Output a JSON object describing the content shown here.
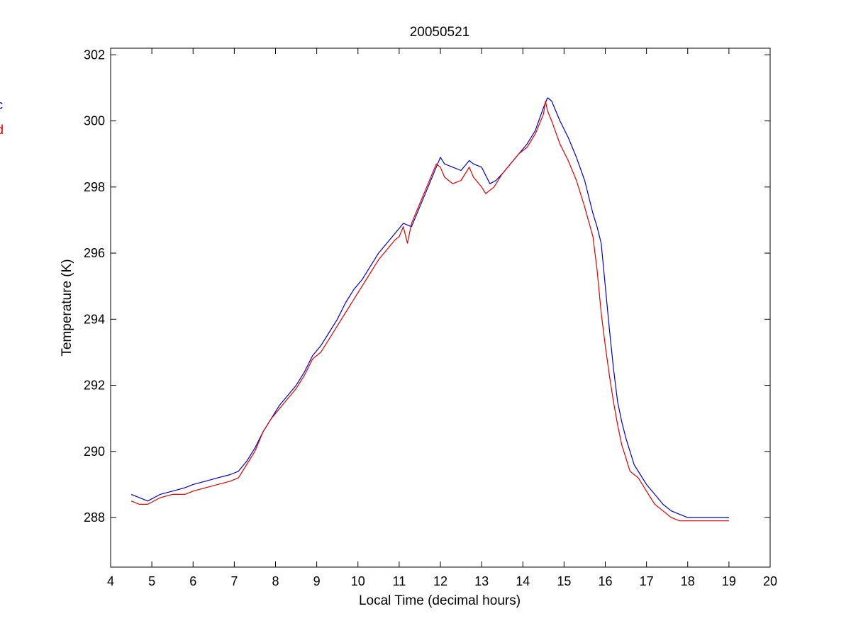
{
  "chart_data": {
    "type": "line",
    "title": "20050521",
    "xlabel": "Local Time (decimal hours)",
    "ylabel": "Temperature (K)",
    "xlim": [
      4,
      20
    ],
    "ylim": [
      286.5,
      302.2
    ],
    "xticks": [
      "4",
      "5",
      "6",
      "7",
      "8",
      "9",
      "10",
      "11",
      "12",
      "13",
      "14",
      "15",
      "16",
      "17",
      "18",
      "19",
      "20"
    ],
    "yticks": [
      "288",
      "290",
      "292",
      "294",
      "296",
      "298",
      "300",
      "302"
    ],
    "grid": false,
    "legend_position": "left-outside",
    "series": [
      {
        "name": "c",
        "color": "#0000cc",
        "x": [
          4.5,
          4.7,
          4.9,
          5.2,
          5.5,
          5.8,
          6.0,
          6.3,
          6.6,
          6.9,
          7.1,
          7.3,
          7.5,
          7.7,
          7.9,
          8.1,
          8.3,
          8.5,
          8.7,
          8.9,
          9.1,
          9.3,
          9.5,
          9.7,
          9.9,
          10.1,
          10.3,
          10.5,
          10.7,
          10.9,
          11.1,
          11.3,
          11.5,
          11.7,
          11.9,
          12.0,
          12.1,
          12.3,
          12.5,
          12.7,
          12.8,
          13.0,
          13.2,
          13.35,
          13.5,
          13.7,
          13.9,
          14.1,
          14.3,
          14.5,
          14.6,
          14.7,
          14.9,
          15.1,
          15.3,
          15.5,
          15.7,
          15.8,
          15.9,
          16.0,
          16.1,
          16.2,
          16.3,
          16.4,
          16.5,
          16.6,
          16.7,
          16.85,
          17.0,
          17.2,
          17.4,
          17.6,
          17.8,
          18.0,
          18.2,
          18.4,
          18.6,
          18.8,
          19.0
        ],
        "y": [
          288.7,
          288.6,
          288.5,
          288.7,
          288.8,
          288.9,
          289.0,
          289.1,
          289.2,
          289.3,
          289.4,
          289.7,
          290.1,
          290.6,
          291.0,
          291.4,
          291.7,
          292.0,
          292.4,
          292.9,
          293.2,
          293.6,
          294.0,
          294.5,
          294.9,
          295.2,
          295.6,
          296.0,
          296.3,
          296.6,
          296.9,
          296.8,
          297.4,
          298.0,
          298.6,
          298.9,
          298.7,
          298.6,
          298.5,
          298.8,
          298.7,
          298.6,
          298.1,
          298.2,
          298.4,
          298.7,
          299.0,
          299.3,
          299.7,
          300.4,
          300.7,
          300.6,
          300.0,
          299.5,
          298.9,
          298.2,
          297.2,
          296.8,
          296.3,
          295.0,
          293.7,
          292.5,
          291.5,
          290.9,
          290.4,
          290.0,
          289.6,
          289.3,
          289.0,
          288.7,
          288.4,
          288.2,
          288.1,
          288.0,
          288.0,
          288.0,
          288.0,
          288.0,
          288.0
        ]
      },
      {
        "name": "d",
        "color": "#dd0000",
        "x": [
          4.5,
          4.7,
          4.9,
          5.2,
          5.5,
          5.8,
          6.0,
          6.3,
          6.6,
          6.9,
          7.1,
          7.3,
          7.5,
          7.7,
          7.9,
          8.1,
          8.3,
          8.5,
          8.7,
          8.9,
          9.1,
          9.3,
          9.5,
          9.7,
          9.9,
          10.1,
          10.3,
          10.5,
          10.7,
          10.9,
          11.0,
          11.1,
          11.2,
          11.3,
          11.5,
          11.7,
          11.9,
          12.0,
          12.1,
          12.2,
          12.3,
          12.5,
          12.7,
          12.8,
          13.0,
          13.1,
          13.3,
          13.5,
          13.7,
          13.9,
          14.1,
          14.3,
          14.5,
          14.55,
          14.6,
          14.7,
          14.9,
          15.1,
          15.3,
          15.5,
          15.7,
          15.8,
          15.9,
          16.0,
          16.1,
          16.2,
          16.3,
          16.4,
          16.5,
          16.6,
          16.8,
          17.0,
          17.2,
          17.4,
          17.6,
          17.8,
          18.0,
          18.2,
          18.4,
          18.6,
          18.8,
          19.0
        ],
        "y": [
          288.5,
          288.4,
          288.4,
          288.6,
          288.7,
          288.7,
          288.8,
          288.9,
          289.0,
          289.1,
          289.2,
          289.6,
          290.0,
          290.6,
          291.0,
          291.3,
          291.6,
          291.9,
          292.3,
          292.8,
          293.0,
          293.4,
          293.8,
          294.2,
          294.6,
          295.0,
          295.4,
          295.8,
          296.1,
          296.4,
          296.5,
          296.8,
          296.3,
          296.9,
          297.5,
          298.1,
          298.7,
          298.6,
          298.3,
          298.2,
          298.1,
          298.2,
          298.6,
          298.3,
          298.0,
          297.8,
          298.0,
          298.4,
          298.7,
          299.0,
          299.2,
          299.6,
          300.2,
          300.6,
          300.3,
          300.0,
          299.3,
          298.8,
          298.2,
          297.4,
          296.5,
          295.5,
          294.2,
          293.2,
          292.3,
          291.5,
          290.8,
          290.2,
          289.8,
          289.4,
          289.2,
          288.8,
          288.4,
          288.2,
          288.0,
          287.9,
          287.9,
          287.9,
          287.9,
          287.9,
          287.9,
          287.9
        ]
      }
    ]
  }
}
